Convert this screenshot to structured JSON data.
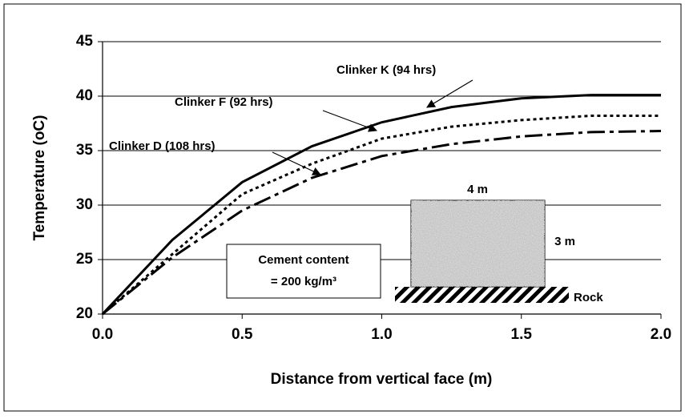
{
  "chart_data": {
    "type": "line",
    "x": [
      0,
      0.25,
      0.5,
      0.75,
      1.0,
      1.25,
      1.5,
      1.75,
      2.0
    ],
    "series": [
      {
        "name": "Clinker K (94 hrs)",
        "color": "#000000",
        "dash": "solid",
        "values": [
          20,
          26.8,
          32.1,
          35.4,
          37.6,
          39.0,
          39.8,
          40.1,
          40.1
        ]
      },
      {
        "name": "Clinker F (92 hrs)",
        "color": "#000000",
        "dash": "dotted",
        "values": [
          20,
          25.5,
          31.0,
          33.8,
          36.1,
          37.2,
          37.8,
          38.2,
          38.2
        ]
      },
      {
        "name": "Clinker D (108 hrs)",
        "color": "#000000",
        "dash": "dashdot",
        "values": [
          20,
          25.2,
          29.5,
          32.5,
          34.5,
          35.6,
          36.3,
          36.7,
          36.8
        ]
      }
    ],
    "x_label": "Distance from vertical face (m)",
    "y_label": "Temperature (oC)",
    "xlim": [
      0,
      2
    ],
    "ylim": [
      20,
      45
    ],
    "xticks": [
      {
        "value": 0,
        "label": "0.0"
      },
      {
        "value": 0.5,
        "label": "0.5"
      },
      {
        "value": 1,
        "label": "1.0"
      },
      {
        "value": 1.5,
        "label": "1.5"
      },
      {
        "value": 2,
        "label": "2.0"
      }
    ],
    "yticks": [
      20,
      25,
      30,
      35,
      40,
      45
    ],
    "grid": true,
    "cement_note": [
      "Cement content",
      "= 200 kg/m³"
    ],
    "inset_labels": {
      "width": "4 m",
      "height": "3 m",
      "base": "Rock"
    }
  }
}
